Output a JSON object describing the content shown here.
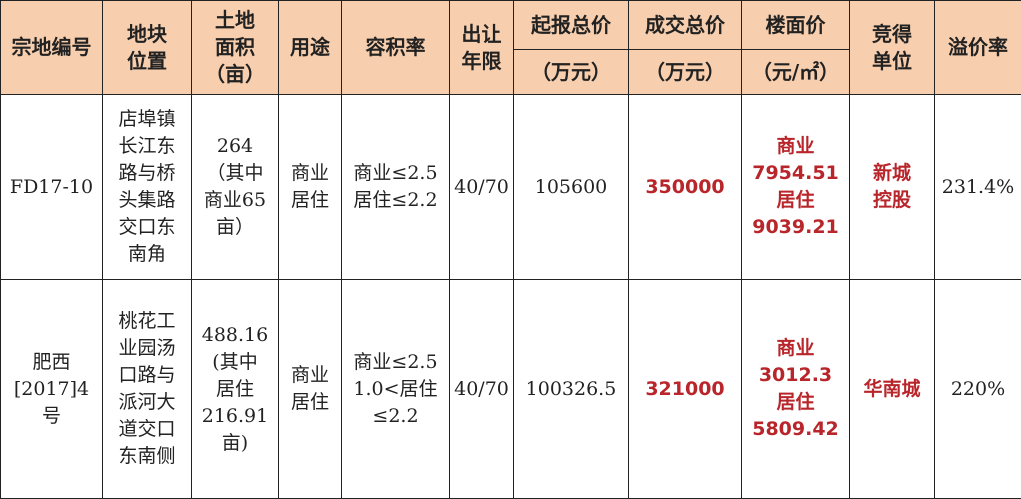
{
  "colors": {
    "header_bg": "#f8cfae",
    "highlight_text": "#b8262b",
    "border": "#222222"
  },
  "headers": {
    "id": "宗地编号",
    "location": "地块\n位置",
    "area": "土地\n面积\n（亩）",
    "use": "用途",
    "far": "容积率",
    "term": "出让\n年限",
    "start_price": "起报总价",
    "start_price_unit": "（万元）",
    "deal_price": "成交总价",
    "deal_price_unit": "（万元）",
    "floor_price": "楼面价",
    "floor_price_unit": "（元/㎡）",
    "winner": "竞得\n单位",
    "premium": "溢价率"
  },
  "rows": [
    {
      "id": "FD17-10",
      "location": "店埠镇\n长江东\n路与桥\n头集路\n交口东\n南角",
      "area": "264\n（其中\n商业65\n亩）",
      "use": "商业\n居住",
      "far": "商业≤2.5\n居住≤2.2",
      "term": "40/70",
      "start_price": "105600",
      "deal_price": "350000",
      "floor_price": "商业\n7954.51\n居住\n9039.21",
      "winner": "新城\n控股",
      "premium": "231.4%"
    },
    {
      "id": "肥西\n[2017]4\n号",
      "location": "桃花工\n业园汤\n口路与\n派河大\n道交口\n东南侧",
      "area": "488.16\n(其中\n居住\n216.91\n亩)",
      "use": "商业\n居住",
      "far": "商业≤2.5\n1.0<居住\n≤2.2",
      "term": "40/70",
      "start_price": "100326.5",
      "deal_price": "321000",
      "floor_price": "商业\n3012.3\n居住\n5809.42",
      "winner": "华南城",
      "premium": "220%"
    }
  ]
}
